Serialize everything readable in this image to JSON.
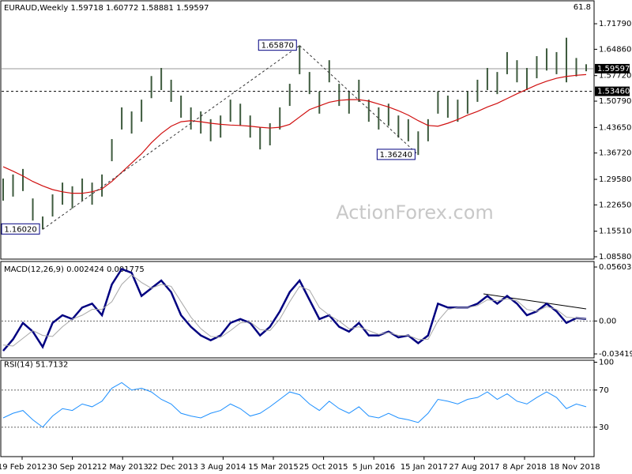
{
  "chart_data": [
    {
      "type": "hilo",
      "title": "EURAUD,Weekly  1.59718 1.60772 1.58881 1.59597",
      "corner_label": "61.8",
      "watermark": "ActionForex.com",
      "categories": [
        "19 Feb 2012",
        "30 Sep 2012",
        "12 May 2013",
        "22 Dec 2013",
        "3 Aug 2014",
        "15 Mar 2015",
        "25 Oct 2015",
        "5 Jun 2016",
        "15 Jan 2017",
        "27 Aug 2017",
        "8 Apr 2018",
        "18 Nov 2018"
      ],
      "color": "#3d5a3d",
      "high": [
        1.298,
        1.309,
        1.324,
        1.244,
        1.195,
        1.255,
        1.287,
        1.277,
        1.298,
        1.287,
        1.309,
        1.405,
        1.491,
        1.48,
        1.512,
        1.576,
        1.598,
        1.566,
        1.523,
        1.491,
        1.48,
        1.459,
        1.469,
        1.512,
        1.501,
        1.469,
        1.437,
        1.448,
        1.491,
        1.555,
        1.659,
        1.587,
        1.534,
        1.619,
        1.555,
        1.534,
        1.566,
        1.512,
        1.491,
        1.501,
        1.469,
        1.459,
        1.426,
        1.459,
        1.534,
        1.523,
        1.512,
        1.534,
        1.566,
        1.598,
        1.587,
        1.641,
        1.619,
        1.598,
        1.63,
        1.651,
        1.641,
        1.68,
        1.625,
        1.608
      ],
      "low": [
        1.238,
        1.249,
        1.264,
        1.184,
        1.16,
        1.195,
        1.227,
        1.217,
        1.238,
        1.227,
        1.249,
        1.345,
        1.431,
        1.42,
        1.452,
        1.516,
        1.538,
        1.506,
        1.463,
        1.431,
        1.42,
        1.399,
        1.409,
        1.452,
        1.441,
        1.409,
        1.377,
        1.388,
        1.431,
        1.495,
        1.581,
        1.527,
        1.474,
        1.559,
        1.495,
        1.474,
        1.506,
        1.452,
        1.431,
        1.441,
        1.409,
        1.399,
        1.362,
        1.399,
        1.474,
        1.463,
        1.452,
        1.474,
        1.506,
        1.538,
        1.527,
        1.581,
        1.559,
        1.538,
        1.57,
        1.591,
        1.581,
        1.559,
        1.575,
        1.589
      ],
      "ma": {
        "color": "#d01010",
        "values": [
          1.33,
          1.318,
          1.305,
          1.29,
          1.278,
          1.268,
          1.262,
          1.258,
          1.258,
          1.262,
          1.27,
          1.29,
          1.315,
          1.34,
          1.365,
          1.395,
          1.42,
          1.44,
          1.452,
          1.455,
          1.452,
          1.448,
          1.445,
          1.443,
          1.442,
          1.44,
          1.437,
          1.435,
          1.437,
          1.445,
          1.465,
          1.485,
          1.495,
          1.505,
          1.51,
          1.512,
          1.512,
          1.508,
          1.5,
          1.492,
          1.482,
          1.47,
          1.455,
          1.442,
          1.44,
          1.448,
          1.458,
          1.47,
          1.48,
          1.492,
          1.502,
          1.515,
          1.528,
          1.54,
          1.552,
          1.562,
          1.57,
          1.575,
          1.578,
          1.58
        ]
      },
      "ylim": [
        1.0794,
        1.778
      ],
      "yticks": [
        {
          "value": 1.7179,
          "label": "1.71790"
        },
        {
          "value": 1.6486,
          "label": "1.64860"
        },
        {
          "value": 1.5772,
          "label": "1.57720"
        },
        {
          "value": 1.5079,
          "label": "1.50790"
        },
        {
          "value": 1.4365,
          "label": "1.43650"
        },
        {
          "value": 1.3672,
          "label": "1.36720"
        },
        {
          "value": 1.2958,
          "label": "1.29580"
        },
        {
          "value": 1.2265,
          "label": "1.22650"
        },
        {
          "value": 1.1551,
          "label": "1.15510"
        },
        {
          "value": 1.0858,
          "label": "1.08580"
        }
      ],
      "annotations": [
        {
          "value": 1.1602,
          "label": "1.16020"
        },
        {
          "value": 1.6587,
          "label": "1.65870"
        },
        {
          "value": 1.3624,
          "label": "1.36240"
        }
      ],
      "levels": [
        {
          "value": 1.59597,
          "label": "1.59597",
          "style": "solid"
        },
        {
          "value": 1.5346,
          "label": "1.53460",
          "style": "dashed"
        }
      ]
    },
    {
      "type": "line",
      "title": "MACD(12,26,9) 0.002424 0.001775",
      "series": [
        {
          "color": "#000080",
          "width": 2.5,
          "values": [
            -0.031,
            -0.019,
            -0.002,
            -0.011,
            -0.027,
            -0.002,
            0.006,
            0.002,
            0.014,
            0.018,
            0.006,
            0.038,
            0.054,
            0.05,
            0.026,
            0.034,
            0.042,
            0.03,
            0.006,
            -0.006,
            -0.015,
            -0.02,
            -0.015,
            -0.002,
            0.002,
            -0.002,
            -0.015,
            -0.006,
            0.01,
            0.03,
            0.042,
            0.022,
            0.002,
            0.006,
            -0.006,
            -0.011,
            -0.002,
            -0.015,
            -0.015,
            -0.011,
            -0.017,
            -0.015,
            -0.023,
            -0.015,
            0.018,
            0.014,
            0.014,
            0.014,
            0.018,
            0.026,
            0.018,
            0.026,
            0.018,
            0.006,
            0.01,
            0.018,
            0.01,
            -0.002,
            0.003,
            0.002
          ]
        },
        {
          "color": "#a8a8a8",
          "width": 1,
          "values": [
            -0.025,
            -0.026,
            -0.018,
            -0.01,
            -0.015,
            -0.016,
            -0.006,
            0.002,
            0.006,
            0.012,
            0.012,
            0.02,
            0.038,
            0.048,
            0.04,
            0.034,
            0.038,
            0.036,
            0.02,
            0.004,
            -0.008,
            -0.016,
            -0.017,
            -0.01,
            -0.002,
            -0.001,
            -0.009,
            -0.01,
            0.002,
            0.02,
            0.036,
            0.032,
            0.014,
            0.006,
            0.0,
            -0.008,
            -0.006,
            -0.01,
            -0.014,
            -0.012,
            -0.015,
            -0.015,
            -0.019,
            -0.019,
            0.0,
            0.012,
            0.014,
            0.014,
            0.016,
            0.022,
            0.021,
            0.023,
            0.021,
            0.012,
            0.01,
            0.015,
            0.012,
            0.004,
            0.003,
            0.002
          ]
        }
      ],
      "ylim": [
        -0.034194,
        0.056039
      ],
      "yticks": [
        0.056039,
        {
          "value": 0,
          "label": "0.00"
        },
        -0.034194
      ]
    },
    {
      "type": "line",
      "title": "RSI(14) 51.7132",
      "series": [
        {
          "color": "#1e90ff",
          "width": 1,
          "values": [
            40,
            45,
            48,
            38,
            30,
            42,
            50,
            48,
            55,
            52,
            58,
            72,
            78,
            70,
            72,
            68,
            60,
            55,
            45,
            42,
            40,
            45,
            48,
            55,
            50,
            42,
            45,
            52,
            60,
            68,
            65,
            55,
            48,
            58,
            50,
            45,
            52,
            42,
            40,
            45,
            40,
            38,
            35,
            45,
            60,
            58,
            55,
            60,
            62,
            68,
            60,
            66,
            58,
            55,
            62,
            68,
            62,
            50,
            55,
            52
          ]
        }
      ],
      "ylim": [
        0,
        100
      ],
      "yticks": [
        100,
        70,
        30
      ]
    }
  ]
}
